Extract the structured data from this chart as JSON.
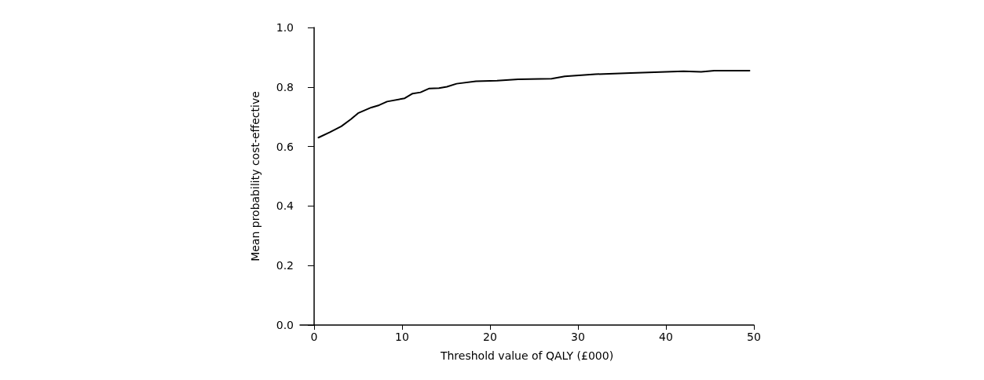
{
  "chart_data": {
    "type": "line",
    "xlabel": "Threshold value of QALY (£000)",
    "ylabel": "Mean probability cost-effective",
    "x": [
      0.5,
      1.8,
      3.1,
      4.2,
      5.0,
      6.5,
      7.4,
      8.3,
      10.3,
      11.2,
      12.1,
      13.1,
      14.2,
      15.1,
      16.2,
      18.4,
      20.8,
      23.2,
      27,
      28.5,
      32,
      36,
      42,
      44,
      45.5,
      49.5
    ],
    "values": [
      0.63,
      0.648,
      0.668,
      0.692,
      0.712,
      0.731,
      0.739,
      0.751,
      0.762,
      0.778,
      0.782,
      0.795,
      0.796,
      0.801,
      0.811,
      0.819,
      0.821,
      0.826,
      0.828,
      0.836,
      0.843,
      0.847,
      0.853,
      0.851,
      0.855,
      0.855
    ],
    "color": "#000000",
    "xlim": [
      -1.6,
      50
    ],
    "xticks": [
      0,
      10,
      20,
      30,
      40,
      50
    ],
    "ylim": [
      0,
      1
    ],
    "yticks": [
      {
        "value": 0,
        "label": "0.0"
      },
      0.2,
      0.4,
      0.6,
      0.8,
      {
        "value": 1,
        "label": "1.0"
      }
    ],
    "grid": false,
    "marker": "none",
    "line_style": "solid"
  }
}
